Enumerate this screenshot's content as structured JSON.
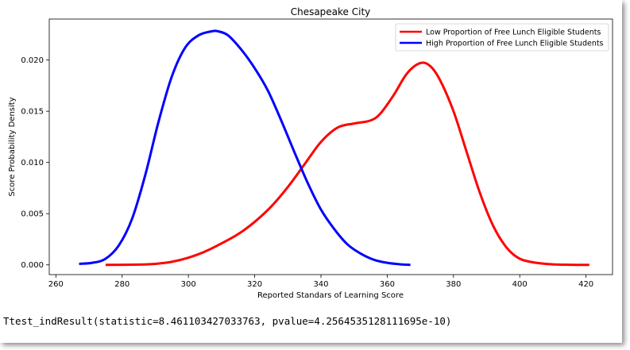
{
  "chart_data": {
    "type": "line",
    "title": "Chesapeake City",
    "xlabel": "Reported Standars of Learning Score",
    "ylabel": "Score Probability Density",
    "xlim": [
      258,
      428
    ],
    "ylim": [
      -0.00095,
      0.024
    ],
    "xticks": [
      260,
      280,
      300,
      320,
      340,
      360,
      380,
      400,
      420
    ],
    "yticks": [
      0.0,
      0.005,
      0.01,
      0.015,
      0.02
    ],
    "ytick_labels": [
      "0.000",
      "0.005",
      "0.010",
      "0.015",
      "0.020"
    ],
    "grid": false,
    "legend_position": "top-right",
    "series": [
      {
        "name": "Low Proportion of Free Lunch Eligible Students",
        "color": "#ff0000",
        "x": [
          275,
          285,
          290,
          295,
          300,
          305,
          310,
          315,
          320,
          325,
          330,
          335,
          340,
          345,
          350,
          355,
          358,
          362,
          366,
          370,
          373,
          376,
          380,
          384,
          388,
          392,
          396,
          400,
          405,
          410,
          415,
          421
        ],
        "y": [
          0.0,
          3e-05,
          0.0001,
          0.0003,
          0.0007,
          0.0013,
          0.0021,
          0.003,
          0.0042,
          0.0057,
          0.0076,
          0.0098,
          0.012,
          0.0134,
          0.0138,
          0.0141,
          0.0148,
          0.0166,
          0.0187,
          0.0197,
          0.0194,
          0.018,
          0.015,
          0.011,
          0.007,
          0.0038,
          0.0017,
          0.0006,
          0.0002,
          5e-05,
          1e-05,
          0.0
        ]
      },
      {
        "name": "High Proportion of Free Lunch Eligible Students",
        "color": "#0000ff",
        "x": [
          267,
          271,
          275,
          279,
          283,
          287,
          291,
          295,
          299,
          303,
          307,
          309,
          312,
          316,
          320,
          324,
          328,
          332,
          336,
          340,
          344,
          348,
          352,
          356,
          360,
          364,
          367
        ],
        "y": [
          0.0001,
          0.0002,
          0.0006,
          0.0019,
          0.0045,
          0.0088,
          0.014,
          0.0184,
          0.0212,
          0.0224,
          0.0228,
          0.0228,
          0.0224,
          0.021,
          0.0192,
          0.017,
          0.0141,
          0.011,
          0.008,
          0.0054,
          0.0035,
          0.002,
          0.0011,
          0.0005,
          0.0002,
          5e-05,
          0.0
        ]
      }
    ]
  },
  "output": {
    "result_text": "Ttest_indResult(statistic=8.461103427033763, pvalue=4.2564535128111695e-10)"
  }
}
